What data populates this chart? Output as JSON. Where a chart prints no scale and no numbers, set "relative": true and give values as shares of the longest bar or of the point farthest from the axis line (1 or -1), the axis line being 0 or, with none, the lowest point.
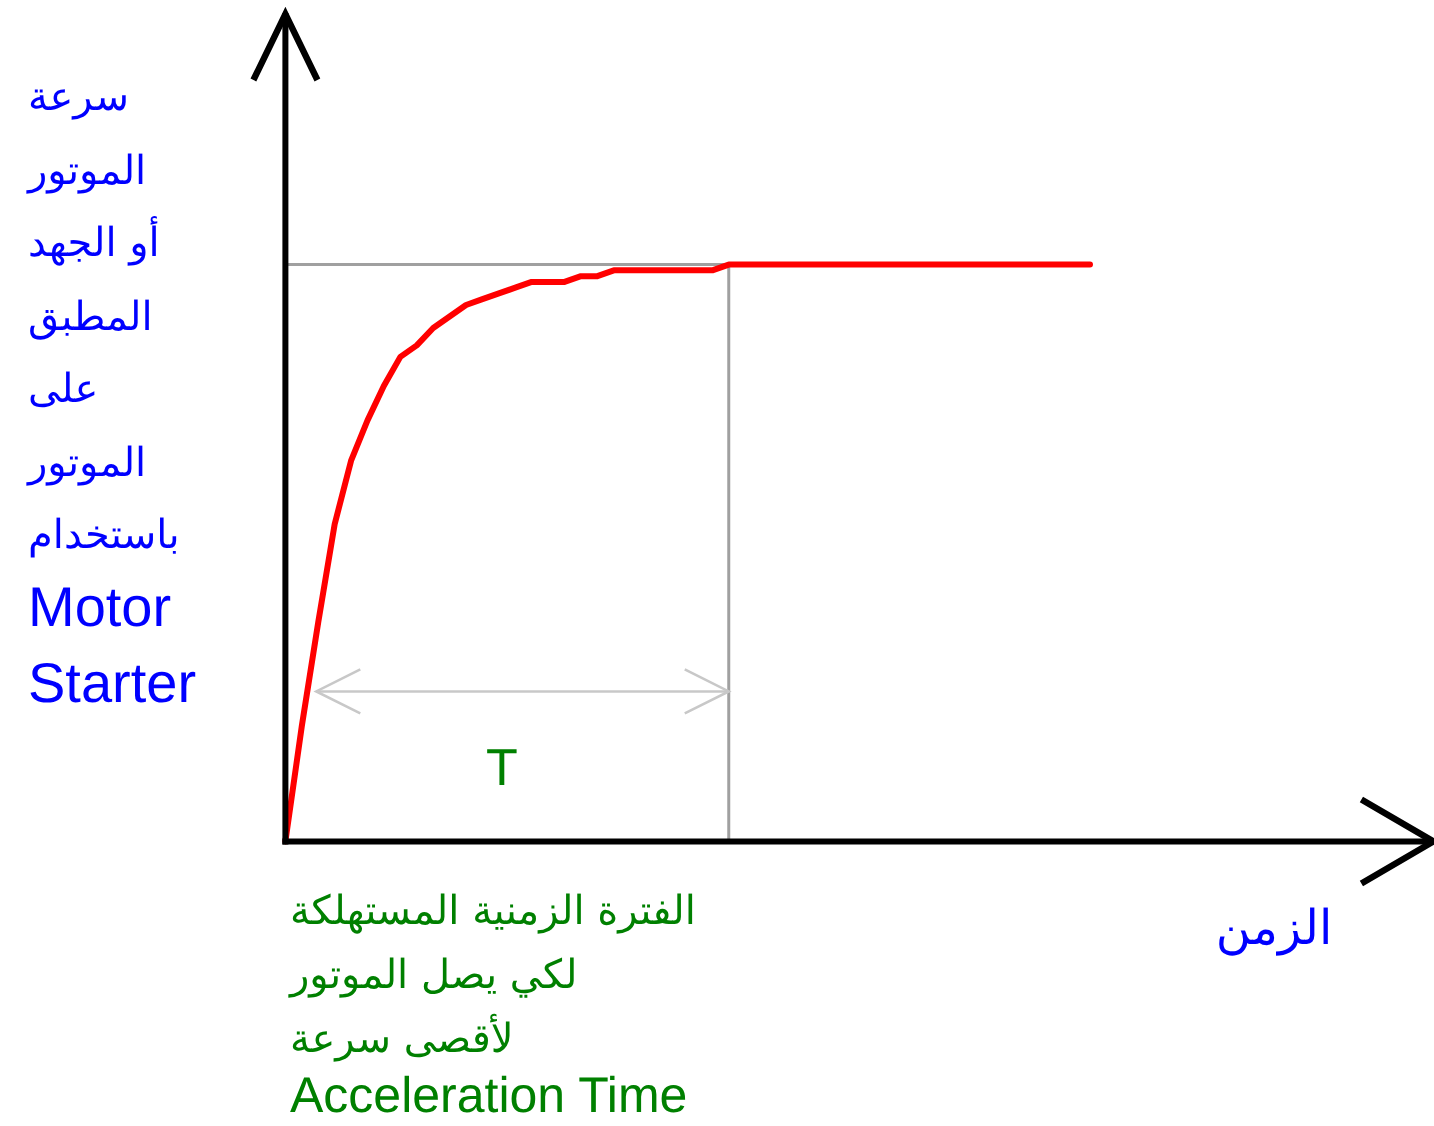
{
  "chart_data": {
    "type": "line",
    "ylabel": "سرعة\nالموتور\nأو الجهد\nالمطبق\nعلى\nالموتور\nباستخدام\nMotor\nStarter",
    "xlabel": "الزمن",
    "categories": [
      null,
      null,
      null,
      null,
      null,
      null,
      null,
      null,
      null,
      null,
      null,
      null,
      null,
      null,
      null,
      null,
      null,
      null,
      null,
      null,
      null,
      null,
      null,
      null,
      null,
      null,
      null,
      null,
      null,
      null,
      null,
      null,
      null,
      null,
      null,
      null,
      null,
      null,
      null,
      null,
      null,
      null,
      null,
      null,
      null,
      null,
      null,
      null,
      null,
      null
    ],
    "series": [
      {
        "color": "#ff0000",
        "values": [
          0,
          0.2,
          0.38,
          0.55,
          0.66,
          0.73,
          0.79,
          0.84,
          0.86,
          0.89,
          0.91,
          0.93,
          0.94,
          0.95,
          0.96,
          0.97,
          0.97,
          0.97,
          0.98,
          0.98,
          0.99,
          0.99,
          0.99,
          0.99,
          0.99,
          0.99,
          0.99,
          1,
          1,
          1,
          1,
          1,
          1,
          1,
          1,
          1,
          1,
          1,
          1,
          1,
          1,
          1,
          1,
          1,
          1,
          1,
          1,
          1,
          1,
          1
        ]
      }
    ],
    "relative": true,
    "ref_lines": [
      {
        "axis": "y",
        "value": 1,
        "color": "#a0a0a0"
      },
      {
        "axis": "y",
        "value": 0.26,
        "color": "#c8c8c8",
        "label": "T"
      }
    ],
    "annotations": [
      "الفترة الزمنية المستهلكة\nلكي يصل الموتور\nلأقصى سرعة",
      "Acceleration Time"
    ],
    "marker": "none",
    "line_style": "solid"
  }
}
